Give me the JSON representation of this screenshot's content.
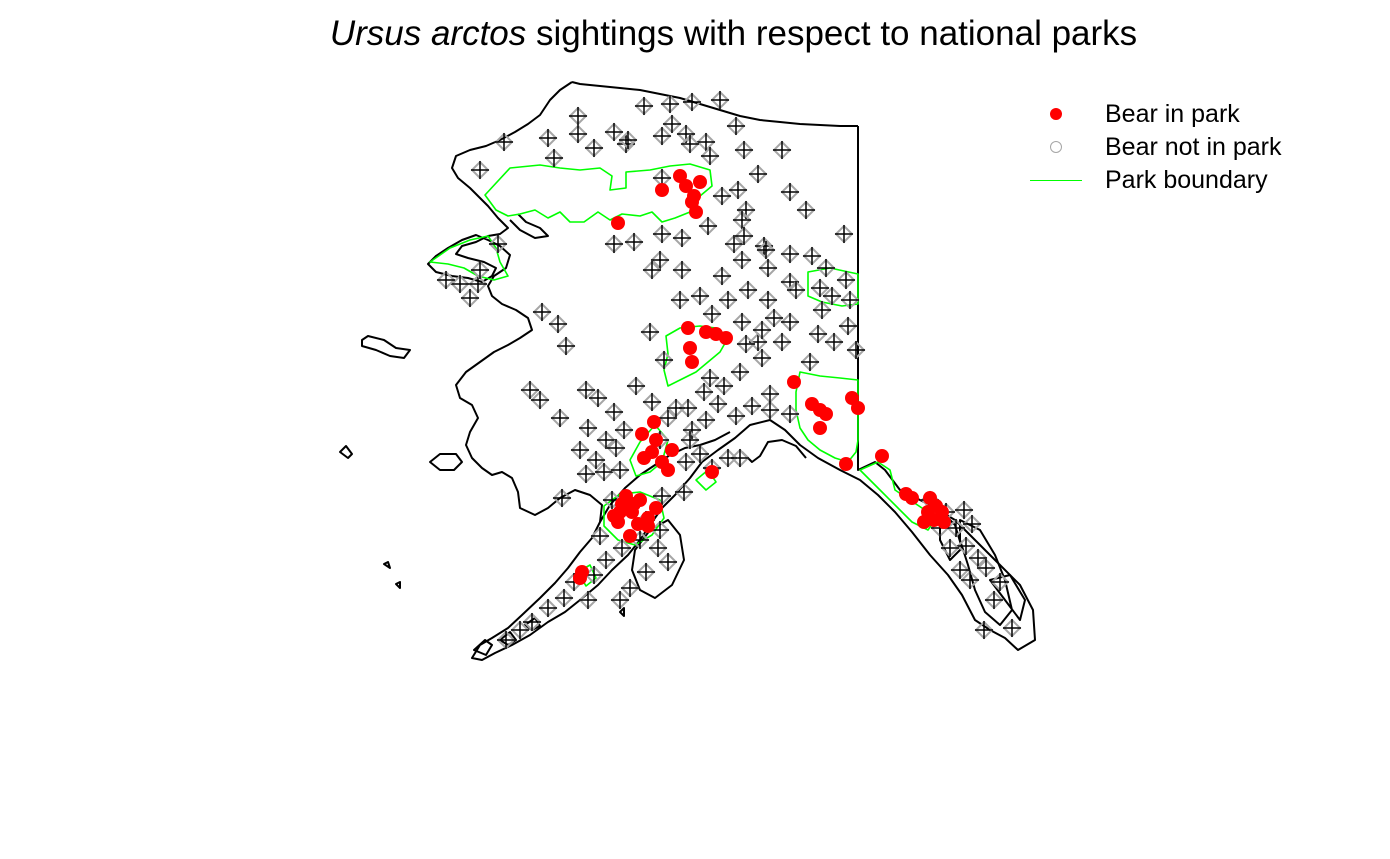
{
  "title": {
    "species": "Ursus arctos",
    "rest": "sightings with respect to national parks"
  },
  "legend": {
    "bear_in_park": "Bear in park",
    "bear_not_in_park": "Bear not in park",
    "park_boundary": "Park boundary"
  },
  "colors": {
    "bear_in_park": "#ff0000",
    "bear_not_in_park": "#a6a6a6",
    "park_boundary": "#00ff00",
    "coastline": "#000000"
  }
}
